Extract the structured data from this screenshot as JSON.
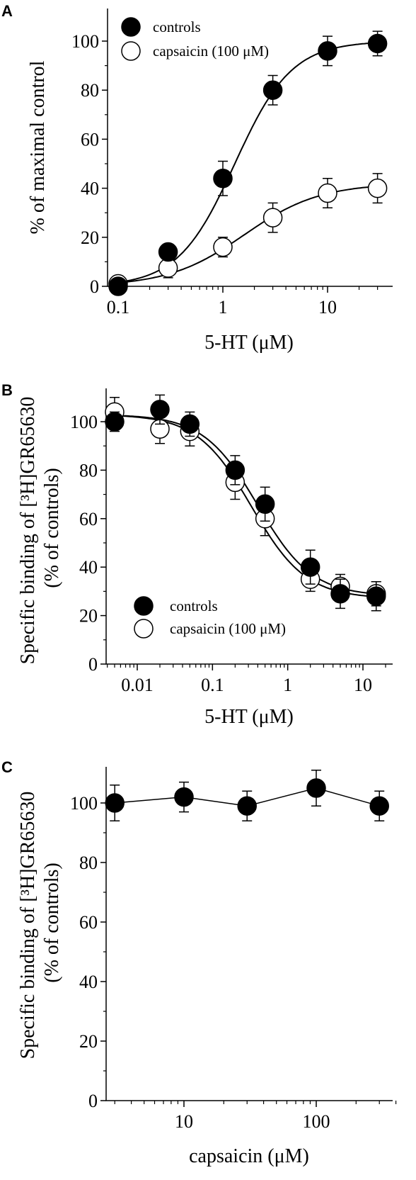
{
  "colors": {
    "ink": "#000000",
    "background": "#ffffff",
    "open_marker_fill": "#ffffff",
    "filled_marker_fill": "#000000"
  },
  "chart_data": [
    {
      "panel": "A",
      "type": "scatter",
      "xscale": "log",
      "xlim": [
        0.1,
        35
      ],
      "ylim": [
        0,
        110
      ],
      "xlabel": "5-HT (μM)",
      "ylabel": "% of maximal control",
      "xticks": [
        0.1,
        1,
        10
      ],
      "xtick_labels": [
        "0.1",
        "1",
        "10"
      ],
      "yticks": [
        0,
        20,
        40,
        60,
        80,
        100
      ],
      "ytick_labels": [
        "0",
        "20",
        "40",
        "60",
        "80",
        "100"
      ],
      "legend_position": "top-left",
      "series": [
        {
          "name": "controls",
          "marker": "filled-circle",
          "x": [
            0.1,
            0.3,
            1,
            3,
            10,
            30
          ],
          "y": [
            0,
            14,
            44,
            80,
            96,
            99
          ],
          "err": [
            0,
            2,
            7,
            6,
            6,
            5
          ],
          "fit": {
            "model": "hill",
            "bottom": 0,
            "top": 100,
            "ec50": 1.3,
            "hill": 1.6
          }
        },
        {
          "name": "capsaicin (100 μM)",
          "marker": "open-circle",
          "x": [
            0.1,
            0.3,
            1,
            3,
            10,
            30
          ],
          "y": [
            1,
            7.5,
            16,
            28,
            38,
            40
          ],
          "err": [
            0,
            4,
            4,
            6,
            6,
            6
          ],
          "fit": {
            "model": "hill",
            "bottom": 0,
            "top": 42,
            "ec50": 1.6,
            "hill": 1.2
          }
        }
      ]
    },
    {
      "panel": "B",
      "type": "scatter",
      "xscale": "log",
      "xlim": [
        0.004,
        20
      ],
      "ylim": [
        0,
        112
      ],
      "xlabel": "5-HT (μM)",
      "ylabel": "Specific binding of [³H]GR65630 (% of controls)",
      "xticks": [
        0.01,
        0.1,
        1,
        10
      ],
      "xtick_labels": [
        "0.01",
        "0.1",
        "1",
        "10"
      ],
      "yticks": [
        0,
        20,
        40,
        60,
        80,
        100
      ],
      "ytick_labels": [
        "0",
        "20",
        "40",
        "60",
        "80",
        "100"
      ],
      "legend_position": "bottom-left",
      "series": [
        {
          "name": "controls",
          "marker": "filled-circle",
          "x": [
            0.005,
            0.02,
            0.05,
            0.2,
            0.5,
            2,
            5,
            15
          ],
          "y": [
            100,
            105,
            99,
            80,
            66,
            40,
            29,
            28
          ],
          "err": [
            4,
            6,
            5,
            6,
            7,
            7,
            6,
            6
          ],
          "fit": {
            "model": "inhibition",
            "top": 103,
            "bottom": 28,
            "ic50": 0.4,
            "hill": 1.2
          }
        },
        {
          "name": "capsaicin (100 μM)",
          "marker": "open-circle",
          "x": [
            0.005,
            0.02,
            0.05,
            0.2,
            0.5,
            2,
            5,
            15
          ],
          "y": [
            104,
            97,
            96,
            75,
            60,
            35,
            32,
            29
          ],
          "err": [
            6,
            6,
            6,
            7,
            7,
            5,
            5,
            5
          ],
          "fit": {
            "model": "inhibition",
            "top": 103,
            "bottom": 27,
            "ic50": 0.33,
            "hill": 1.2
          }
        }
      ]
    },
    {
      "panel": "C",
      "type": "line",
      "xscale": "log",
      "xlim": [
        2.5,
        400
      ],
      "ylim": [
        0,
        115
      ],
      "xlabel": "capsaicin (μM)",
      "ylabel": "Specific binding of [³H]GR65630 (% of controls)",
      "xticks": [
        10,
        100
      ],
      "xtick_labels": [
        "10",
        "100"
      ],
      "yticks": [
        0,
        20,
        40,
        60,
        80,
        100
      ],
      "ytick_labels": [
        "0",
        "20",
        "40",
        "60",
        "80",
        "100"
      ],
      "series": [
        {
          "marker": "filled-circle",
          "x": [
            3,
            10,
            30,
            100,
            300
          ],
          "y": [
            100,
            102,
            99,
            105,
            99
          ],
          "err": [
            6,
            5,
            5,
            6,
            5
          ]
        }
      ]
    }
  ]
}
